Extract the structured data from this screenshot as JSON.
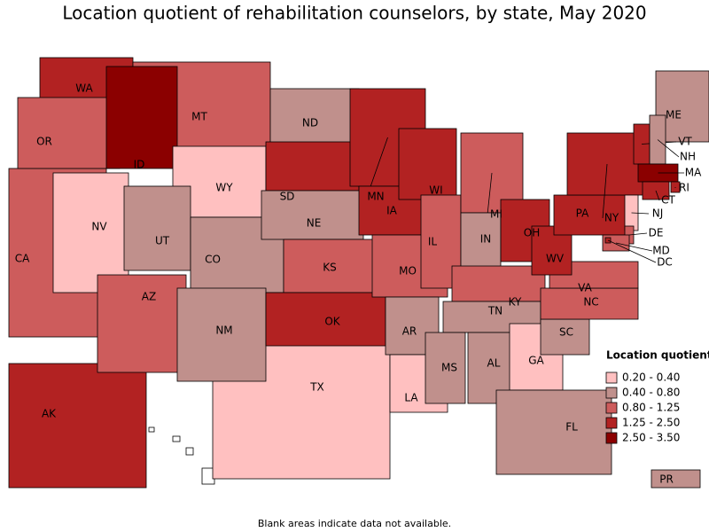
{
  "title": "Location quotient of rehabilitation counselors, by state, May 2020",
  "footnote": "Blank areas indicate data not available.",
  "legend": {
    "title": "Location quotient",
    "classes": [
      {
        "label": "0.20 - 0.40",
        "color": "#ffc0c0"
      },
      {
        "label": "0.40 - 0.80",
        "color": "#c0908c"
      },
      {
        "label": "0.80 - 1.25",
        "color": "#cd5c5c"
      },
      {
        "label": "1.25 - 2.50",
        "color": "#b22222"
      },
      {
        "label": "2.50 - 3.50",
        "color": "#8b0000"
      }
    ]
  },
  "states": [
    {
      "label": "CA",
      "class": 2
    },
    {
      "label": "TX",
      "class": 0
    },
    {
      "label": "AK",
      "class": 3
    },
    {
      "label": "WA",
      "class": 3
    },
    {
      "label": "OR",
      "class": 2
    },
    {
      "label": "NV",
      "class": 0
    },
    {
      "label": "MT",
      "class": 2
    },
    {
      "label": "ID",
      "class": 4
    },
    {
      "label": "WY",
      "class": 0
    },
    {
      "label": "UT",
      "class": 1
    },
    {
      "label": "CO",
      "class": 1
    },
    {
      "label": "AZ",
      "class": 2
    },
    {
      "label": "NM",
      "class": 1
    },
    {
      "label": "ND",
      "class": 1
    },
    {
      "label": "SD",
      "class": 3
    },
    {
      "label": "NE",
      "class": 1
    },
    {
      "label": "KS",
      "class": 2
    },
    {
      "label": "OK",
      "class": 3
    },
    {
      "label": "MN",
      "class": 3
    },
    {
      "label": "IA",
      "class": 3
    },
    {
      "label": "MO",
      "class": 2
    },
    {
      "label": "AR",
      "class": 1
    },
    {
      "label": "LA",
      "class": 0
    },
    {
      "label": "WI",
      "class": 3
    },
    {
      "label": "IL",
      "class": 2
    },
    {
      "label": "MI",
      "class": 2
    },
    {
      "label": "IN",
      "class": 1
    },
    {
      "label": "OH",
      "class": 3
    },
    {
      "label": "KY",
      "class": 2
    },
    {
      "label": "TN",
      "class": 1
    },
    {
      "label": "MS",
      "class": 1
    },
    {
      "label": "AL",
      "class": 1
    },
    {
      "label": "GA",
      "class": 0
    },
    {
      "label": "FL",
      "class": 1
    },
    {
      "label": "SC",
      "class": 1
    },
    {
      "label": "NC",
      "class": 2
    },
    {
      "label": "VA",
      "class": 2
    },
    {
      "label": "WV",
      "class": 3
    },
    {
      "label": "PA",
      "class": 3
    },
    {
      "label": "NY",
      "class": 3
    },
    {
      "label": "ME",
      "class": 1
    },
    {
      "label": "VT",
      "class": 3
    },
    {
      "label": "NH",
      "class": 1
    },
    {
      "label": "MA",
      "class": 4
    },
    {
      "label": "RI",
      "class": 3
    },
    {
      "label": "CT",
      "class": 3
    },
    {
      "label": "NJ",
      "class": 0
    },
    {
      "label": "DE",
      "class": 2
    },
    {
      "label": "MD",
      "class": 2
    },
    {
      "label": "DC",
      "class": 3
    },
    {
      "label": "PR",
      "class": 1
    }
  ]
}
